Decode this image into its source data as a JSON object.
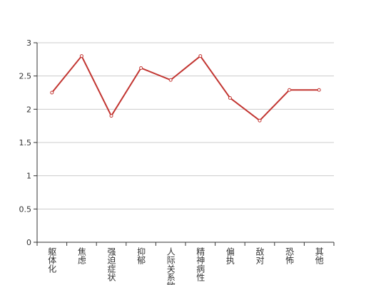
{
  "chart_data": {
    "type": "line",
    "categories": [
      "躯体化",
      "焦虑",
      "强迫症状",
      "抑郁",
      "人际关系敏感",
      "精神病性",
      "偏执",
      "敌对",
      "恐怖",
      "其他"
    ],
    "series": [
      {
        "color": "#c23531",
        "values": [
          2.25,
          2.8,
          1.9,
          2.62,
          2.44,
          2.8,
          2.17,
          1.83,
          2.29,
          2.29
        ]
      }
    ],
    "ylim": [
      0,
      3
    ],
    "yticks": [
      0,
      0.5,
      1,
      1.5,
      2,
      2.5,
      3
    ],
    "grid": true
  }
}
